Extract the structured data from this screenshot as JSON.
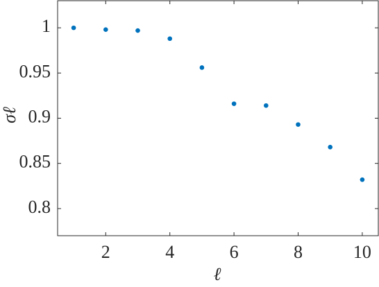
{
  "chart_data": {
    "type": "scatter",
    "xlabel": "ℓ",
    "ylabel": "σℓ",
    "x": [
      1,
      2,
      3,
      4,
      5,
      6,
      7,
      8,
      9,
      10
    ],
    "series": [
      {
        "color": "#0072bd",
        "values": [
          1.0,
          0.998,
          0.997,
          0.988,
          0.956,
          0.916,
          0.914,
          0.893,
          0.868,
          0.832
        ]
      }
    ],
    "xlim": [
      0.5,
      10.5
    ],
    "xticks": [
      2,
      4,
      6,
      8,
      10
    ],
    "ylim": [
      0.77,
      1.03
    ],
    "yticks": [
      0.8,
      0.85,
      0.9,
      0.95,
      1
    ]
  }
}
